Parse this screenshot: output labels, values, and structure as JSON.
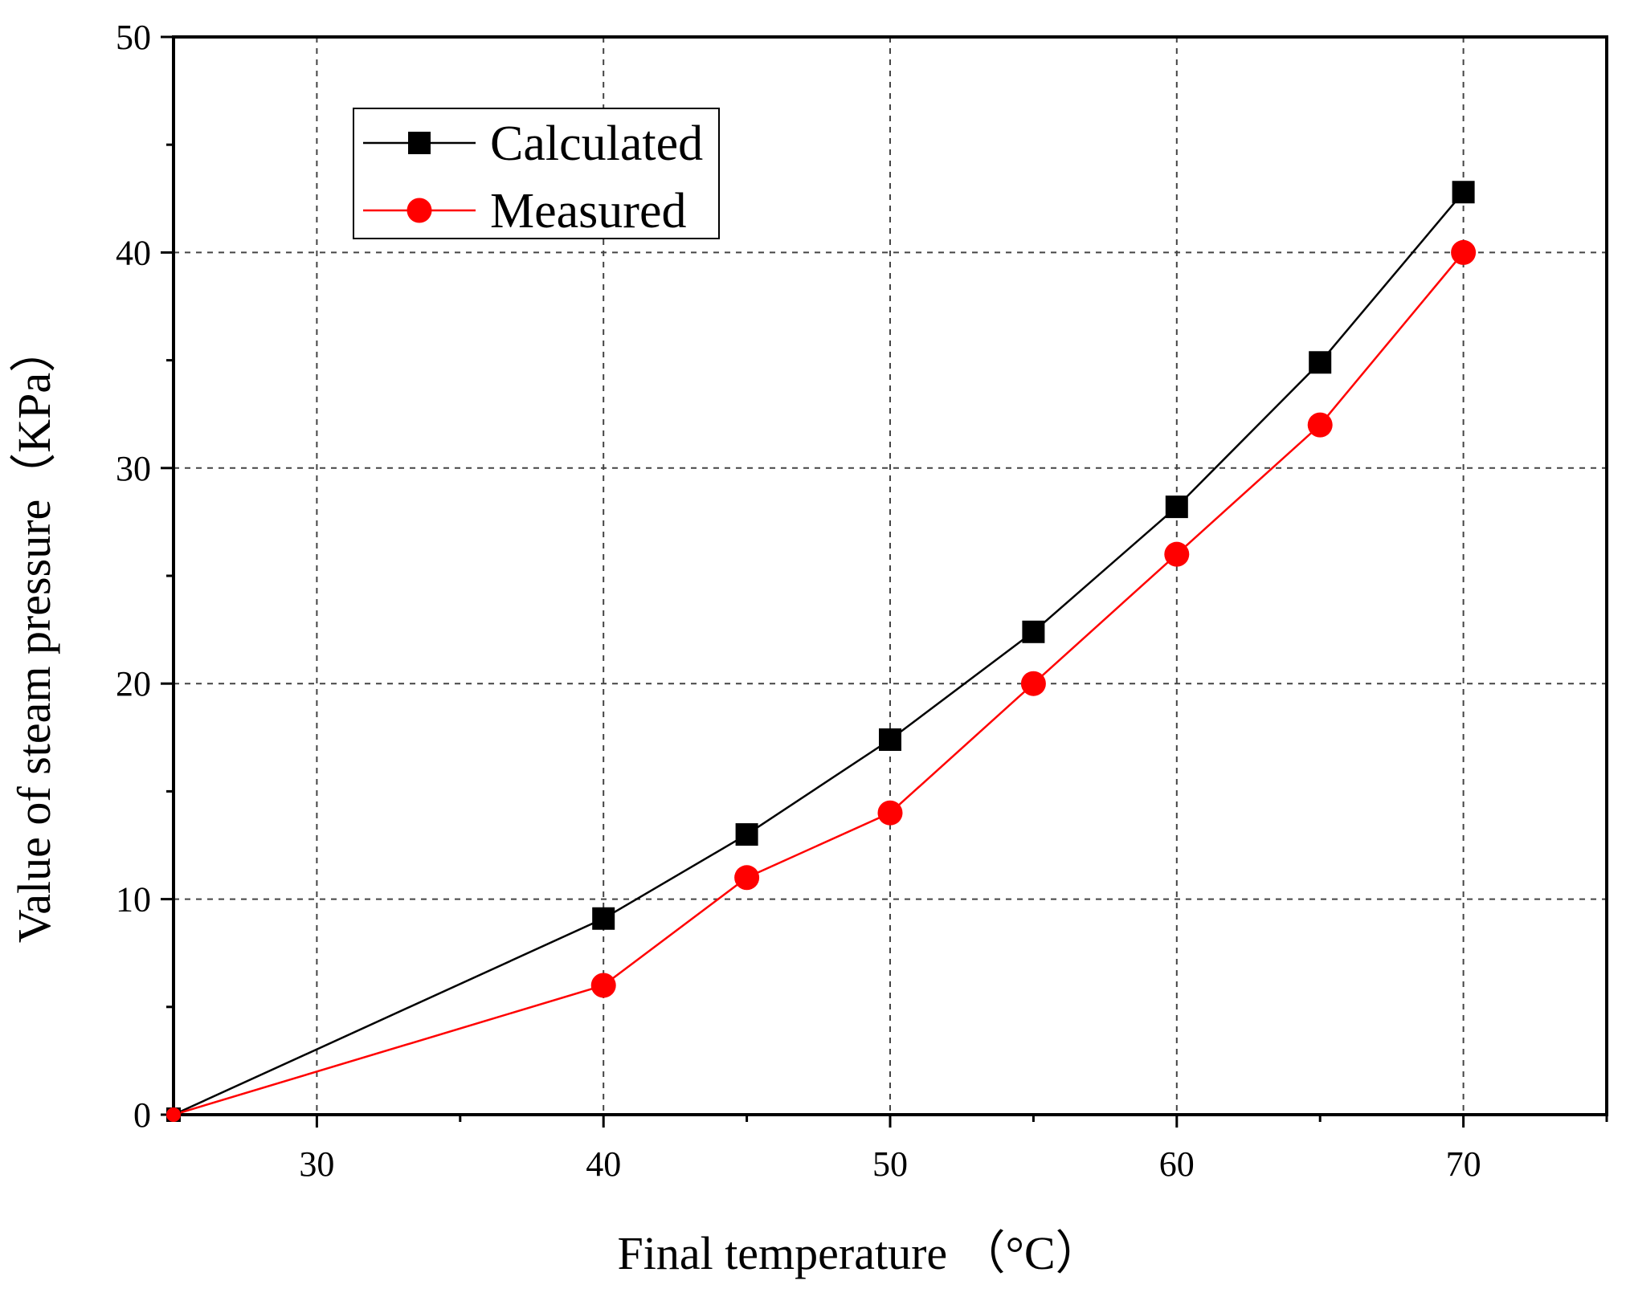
{
  "chart_data": {
    "type": "line",
    "title": "",
    "xlabel": "Final temperature （°C）",
    "ylabel": "Value of steam pressure（KPa）",
    "xlim": [
      25,
      75
    ],
    "ylim": [
      0,
      50
    ],
    "x_ticks": [
      30,
      40,
      50,
      60,
      70
    ],
    "x_tick_labels": [
      "30",
      "40",
      "50",
      "60",
      "70"
    ],
    "x_minor_ticks": [
      35,
      45,
      55,
      65,
      75
    ],
    "y_ticks": [
      0,
      10,
      20,
      30,
      40,
      50
    ],
    "y_tick_labels": [
      "0",
      "10",
      "20",
      "30",
      "40",
      "50"
    ],
    "grid": true,
    "legend_position": "top-left",
    "x": [
      25,
      40,
      45,
      50,
      55,
      60,
      65,
      70
    ],
    "series": [
      {
        "name": "Calculated",
        "color": "#000000",
        "marker": "square",
        "values": [
          0,
          9.1,
          13.0,
          17.4,
          22.4,
          28.2,
          34.9,
          42.8
        ]
      },
      {
        "name": "Measured",
        "color": "#ff0000",
        "marker": "circle",
        "values": [
          0,
          6.0,
          11.0,
          14.0,
          20.0,
          26.0,
          32.0,
          40.0
        ]
      }
    ]
  }
}
